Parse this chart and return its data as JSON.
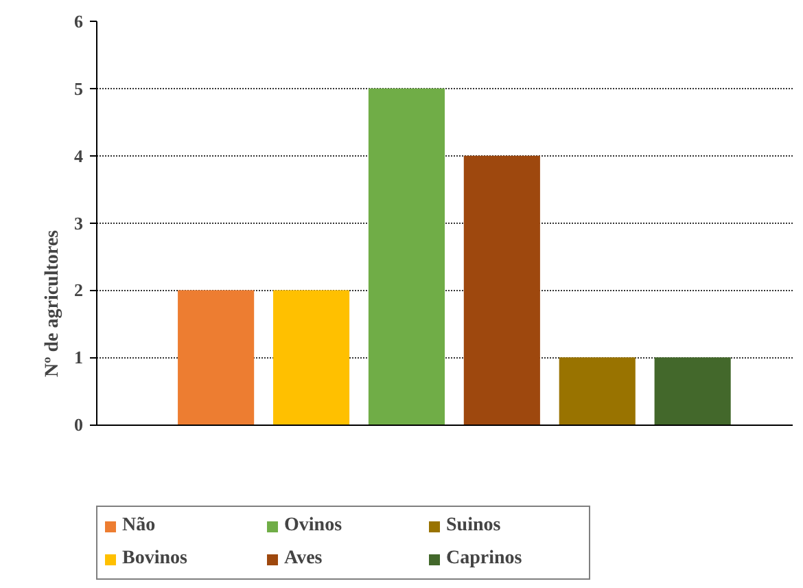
{
  "chart_data": {
    "type": "bar",
    "ylabel": "Nº de agricultores",
    "stacked": true,
    "categories": [
      null,
      null,
      null,
      null,
      null,
      null
    ],
    "series": [
      {
        "name": "Não",
        "color": "#ed7d31",
        "values": [
          2,
          null,
          null,
          null,
          null,
          null
        ]
      },
      {
        "name": "Bovinos",
        "color": "#ffc000",
        "values": [
          null,
          2,
          null,
          null,
          null,
          null
        ]
      },
      {
        "name": "Ovinos",
        "color": "#70ad47",
        "values": [
          null,
          null,
          5,
          null,
          null,
          null
        ]
      },
      {
        "name": "Aves",
        "color": "#9e480e",
        "values": [
          null,
          null,
          null,
          4,
          null,
          null
        ]
      },
      {
        "name": "Suinos",
        "color": "#997300",
        "values": [
          null,
          null,
          null,
          null,
          1,
          null
        ]
      },
      {
        "name": "Caprinos",
        "color": "#43682b",
        "values": [
          null,
          null,
          null,
          null,
          null,
          1
        ]
      }
    ],
    "ylim": [
      0,
      6
    ],
    "yticks": [
      0,
      1,
      2,
      3,
      4,
      5,
      6
    ],
    "grid": "y",
    "legend": "bottom",
    "tick_labels": "y"
  }
}
